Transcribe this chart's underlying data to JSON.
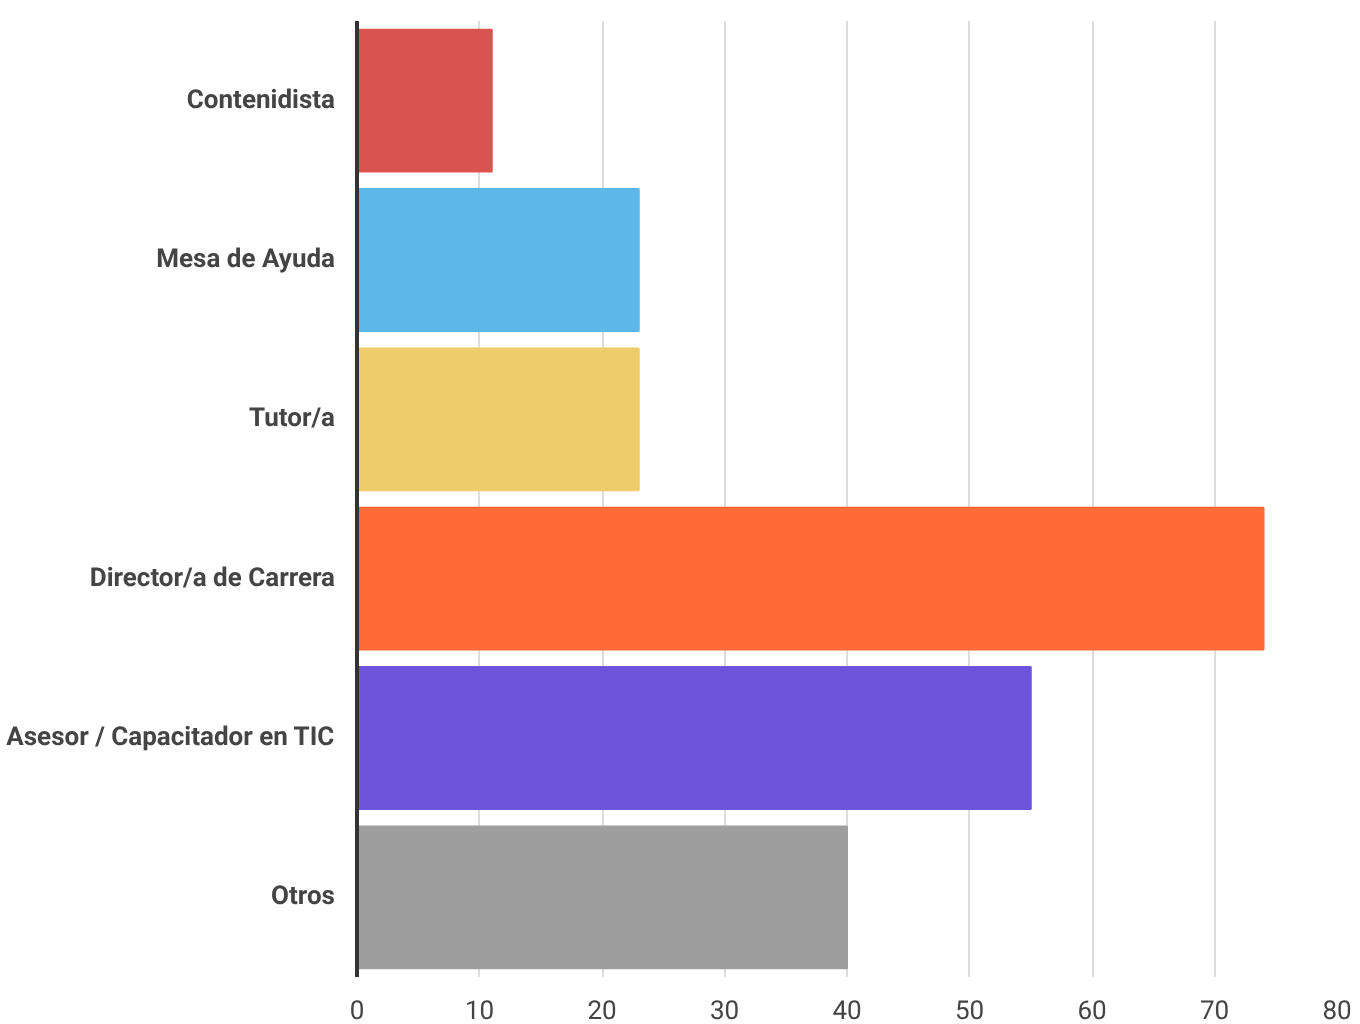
{
  "chart_data": {
    "type": "bar",
    "orientation": "horizontal",
    "categories": [
      "Contenidista",
      "Mesa de Ayuda",
      "Tutor/a",
      "Director/a de Carrera",
      "Asesor / Capacitador en TIC",
      "Otros"
    ],
    "values": [
      11,
      23,
      23,
      74,
      55,
      40
    ],
    "colors": [
      "#d95350",
      "#5db7e8",
      "#eecc6b",
      "#ff6b38",
      "#6c54db",
      "#9e9e9e"
    ],
    "xlim": [
      0,
      80
    ],
    "xticks": [
      0,
      10,
      20,
      30,
      40,
      50,
      60,
      70,
      80
    ],
    "grid": "x"
  }
}
